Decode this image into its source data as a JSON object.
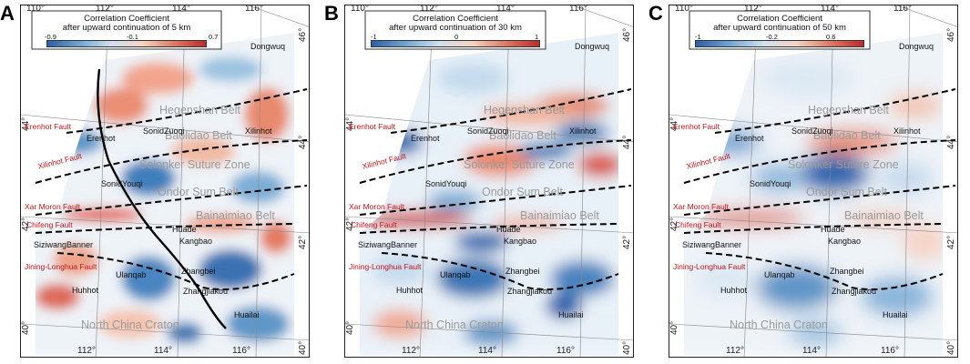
{
  "colors": {
    "fault_label": "#c0161b",
    "belt_label": "#9a9a9a",
    "positive": "#d6604d",
    "negative": "#3b78b8"
  },
  "ticks": {
    "top": [
      "110°",
      "112°",
      "114°",
      "116°"
    ],
    "bottom": [
      "112°",
      "114°",
      "116°"
    ],
    "left": [
      "44°",
      "42°",
      "40°"
    ],
    "right": [
      "46°",
      "44°",
      "42°",
      "40°"
    ]
  },
  "labels": {
    "cities": {
      "dongwuq": "Dongwuq",
      "erenhot": "Erenhot",
      "sonidzuoqi": "SonidZuoqi",
      "xilinhot": "Xilinhot",
      "sonidyouqi": "SonidYouqi",
      "huade": "Huade",
      "kangbao": "Kangbao",
      "siziwangbanner": "SiziwangBanner",
      "ulanqab": "Ulanqab",
      "zhangbei": "Zhangbei",
      "huhhot": "Huhhot",
      "zhangjiakou": "Zhangjiakou",
      "huailai": "Huailai"
    },
    "faults": {
      "erenhot": "Erenhot Fault",
      "xilinhot": "Xilinhot Fault",
      "xarmoron": "Xar Moron Fault",
      "chifeng": "Chifeng Fault",
      "jining": "Jining-Longhua Fault"
    },
    "belts": {
      "hegenshan": "Hegenshan Belt",
      "baolidao": "Baolidao Belt",
      "solonker": "Solonker Suture Zone",
      "ondor": "Ondor Sum Belt",
      "bainaimiao": "Bainaimiao Belt",
      "ncc": "North China Craton"
    }
  },
  "panels": [
    {
      "letter": "A",
      "title1": "Correlation Coefficient",
      "title2": "after upward continuation of 5 km",
      "cbar_ticks": [
        "-0.9",
        "-0.1",
        "0.7"
      ]
    },
    {
      "letter": "B",
      "title1": "Correlation Coefficient",
      "title2": "after upward continuation of 30 km",
      "cbar_ticks": [
        "-1",
        "0",
        "1"
      ]
    },
    {
      "letter": "C",
      "title1": "Correlation Coefficient",
      "title2": "after upward continuation of 50 km",
      "cbar_ticks": [
        "-1",
        "-0.2",
        "0.6"
      ]
    }
  ]
}
